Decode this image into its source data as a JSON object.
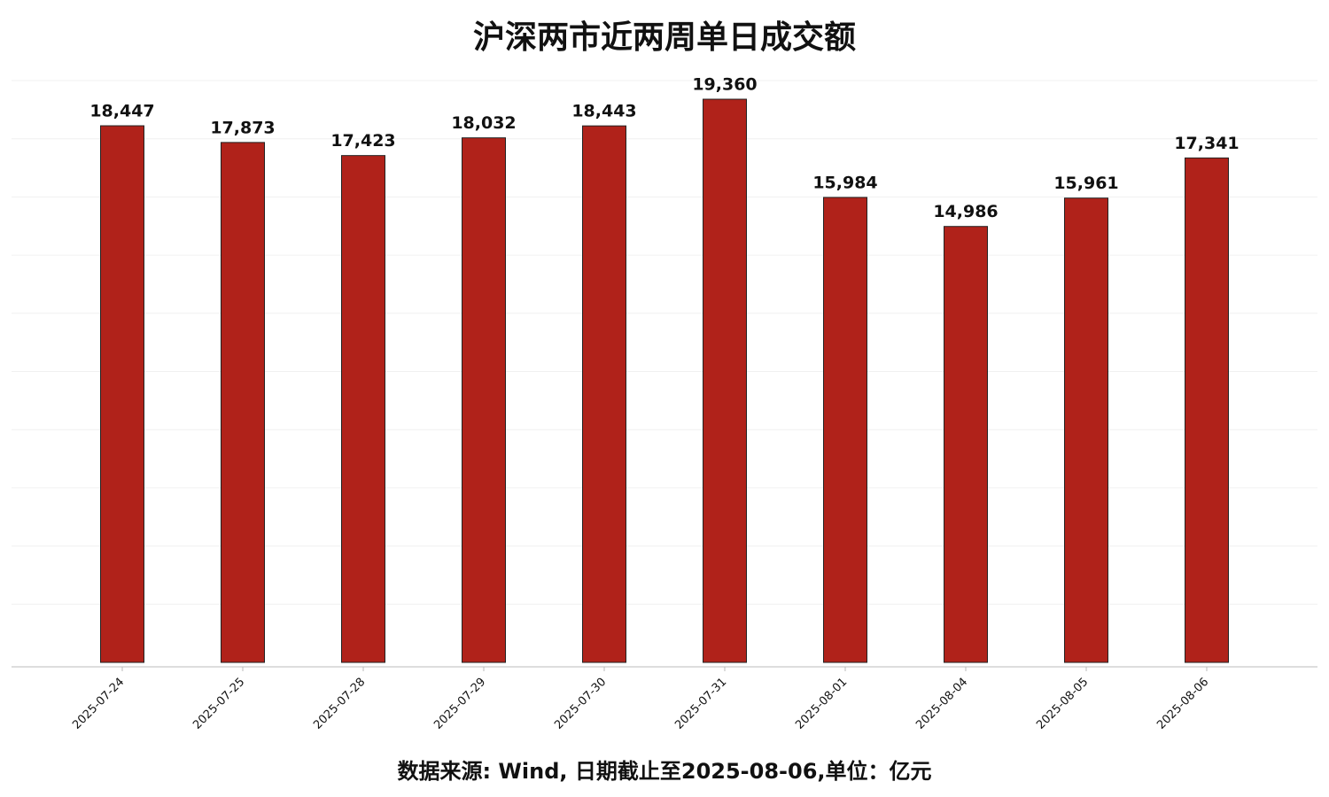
{
  "chart_data": {
    "type": "bar",
    "title": "沪深两市近两周单日成交额",
    "categories": [
      "2025-07-24",
      "2025-07-25",
      "2025-07-28",
      "2025-07-29",
      "2025-07-30",
      "2025-07-31",
      "2025-08-01",
      "2025-08-04",
      "2025-08-05",
      "2025-08-06"
    ],
    "values": [
      18447,
      17873,
      17423,
      18032,
      18443,
      19360,
      15984,
      14986,
      15961,
      17341
    ],
    "value_labels": [
      "18,447",
      "17,873",
      "17,423",
      "18,032",
      "18,443",
      "19,360",
      "15,984",
      "14,986",
      "15,961",
      "17,341"
    ],
    "color": "#b0221a",
    "ylim": [
      0,
      20000
    ],
    "yticks": [
      2000,
      4000,
      6000,
      8000,
      10000,
      12000,
      14000,
      16000,
      18000,
      20000
    ],
    "grid": true,
    "caption": "数据来源: Wind, 日期截止至2025-08-06,单位：亿元"
  }
}
